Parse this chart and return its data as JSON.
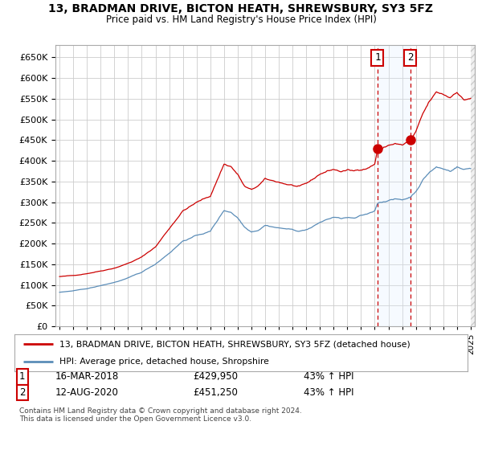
{
  "title": "13, BRADMAN DRIVE, BICTON HEATH, SHREWSBURY, SY3 5FZ",
  "subtitle": "Price paid vs. HM Land Registry's House Price Index (HPI)",
  "legend_line1": "13, BRADMAN DRIVE, BICTON HEATH, SHREWSBURY, SY3 5FZ (detached house)",
  "legend_line2": "HPI: Average price, detached house, Shropshire",
  "annotation1_label": "1",
  "annotation1_date": "16-MAR-2018",
  "annotation1_price": "£429,950",
  "annotation1_hpi": "43% ↑ HPI",
  "annotation2_label": "2",
  "annotation2_date": "12-AUG-2020",
  "annotation2_price": "£451,250",
  "annotation2_hpi": "43% ↑ HPI",
  "footer": "Contains HM Land Registry data © Crown copyright and database right 2024.\nThis data is licensed under the Open Government Licence v3.0.",
  "red_color": "#cc0000",
  "blue_color": "#5b8db8",
  "shade_color": "#ddeeff",
  "annotation_color": "#cc0000",
  "background_color": "#ffffff",
  "grid_color": "#cccccc",
  "ylim": [
    0,
    680000
  ],
  "yticks": [
    0,
    50000,
    100000,
    150000,
    200000,
    250000,
    300000,
    350000,
    400000,
    450000,
    500000,
    550000,
    600000,
    650000
  ],
  "xlim_start": 1994.7,
  "xlim_end": 2025.3,
  "hatch_start": 2025.0,
  "ann1_x": 2018.2,
  "ann1_y": 429950,
  "ann2_x": 2020.6,
  "ann2_y": 451250,
  "vline1_x": 2018.2,
  "vline2_x": 2020.6
}
